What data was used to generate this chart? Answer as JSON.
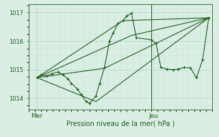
{
  "background_color": "#daeee4",
  "grid_color_major": "#b8d8cc",
  "grid_color_minor": "#c8e4d8",
  "line_color": "#1a5c1a",
  "xlabel": "Pression niveau de la mer( hPa )",
  "xlabel_color": "#1a5c1a",
  "tick_color": "#1a5c1a",
  "label_color": "#1a5c1a",
  "ylim": [
    1013.6,
    1017.3
  ],
  "xlim": [
    0.0,
    1.5
  ],
  "yticks": [
    1014,
    1015,
    1016,
    1017
  ],
  "day_labels": [
    "Mer",
    "Jeu"
  ],
  "day_positions": [
    0.07,
    1.02
  ],
  "vline_x": 1.0,
  "main_line": {
    "x": [
      0.07,
      0.1,
      0.15,
      0.19,
      0.24,
      0.28,
      0.32,
      0.35,
      0.4,
      0.43,
      0.47,
      0.5,
      0.55,
      0.58,
      0.62,
      0.66,
      0.69,
      0.73,
      0.77,
      0.8,
      0.84,
      0.88,
      1.0,
      1.04,
      1.08,
      1.13,
      1.18,
      1.22,
      1.27,
      1.32,
      1.37,
      1.42,
      1.47
    ],
    "y": [
      1014.72,
      1014.82,
      1014.78,
      1014.86,
      1014.92,
      1014.83,
      1014.68,
      1014.52,
      1014.32,
      1014.12,
      1013.88,
      1013.82,
      1014.08,
      1014.52,
      1015.08,
      1016.0,
      1016.28,
      1016.62,
      1016.72,
      1016.88,
      1016.98,
      1016.12,
      1016.05,
      1015.92,
      1015.08,
      1015.02,
      1015.0,
      1015.02,
      1015.08,
      1015.06,
      1014.72,
      1015.35,
      1016.82
    ]
  },
  "fan_lines": [
    {
      "x": [
        0.07,
        0.84,
        1.47
      ],
      "y": [
        1014.72,
        1016.2,
        1016.82
      ]
    },
    {
      "x": [
        0.07,
        0.62,
        1.47
      ],
      "y": [
        1014.72,
        1015.05,
        1016.82
      ]
    },
    {
      "x": [
        0.07,
        0.55,
        1.47
      ],
      "y": [
        1014.72,
        1013.88,
        1016.82
      ]
    },
    {
      "x": [
        0.07,
        0.77,
        1.47
      ],
      "y": [
        1014.72,
        1016.72,
        1016.82
      ]
    }
  ]
}
